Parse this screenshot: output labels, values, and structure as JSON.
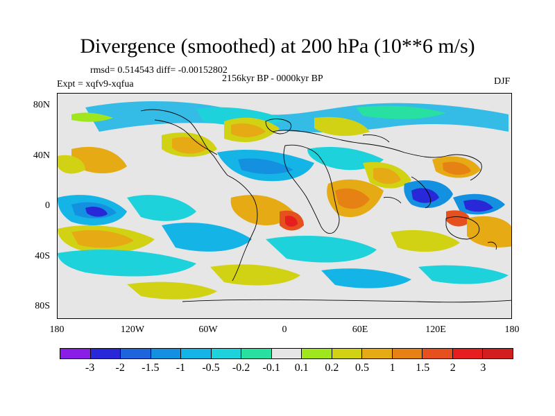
{
  "title": "Divergence (smoothed) at 200 hPa (10**6 m/s)",
  "stats": "rmsd= 0.514543 diff= -0.00152802",
  "expt": "Expt = xqfv9-xqfua",
  "period": "2156kyr BP - 0000kyr BP",
  "season": "DJF",
  "lat_labels": [
    "80N",
    "40N",
    "0",
    "40S",
    "80S"
  ],
  "lon_labels": [
    "180",
    "120W",
    "60W",
    "0",
    "60E",
    "120E",
    "180"
  ],
  "colorbar": {
    "labels": [
      "-3",
      "-2",
      "-1.5",
      "-1",
      "-0.5",
      "-0.2",
      "-0.1",
      "0.1",
      "0.2",
      "0.5",
      "1",
      "1.5",
      "2",
      "3"
    ],
    "colors": [
      "#8a1ee6",
      "#2828d8",
      "#1e64dc",
      "#1490e0",
      "#14b4e6",
      "#1ed2dc",
      "#28e1a0",
      "#e6e6e6",
      "#a0e61e",
      "#d2d214",
      "#e6aa14",
      "#e68214",
      "#e6501e",
      "#e61e1e",
      "#d21e1e"
    ]
  }
}
